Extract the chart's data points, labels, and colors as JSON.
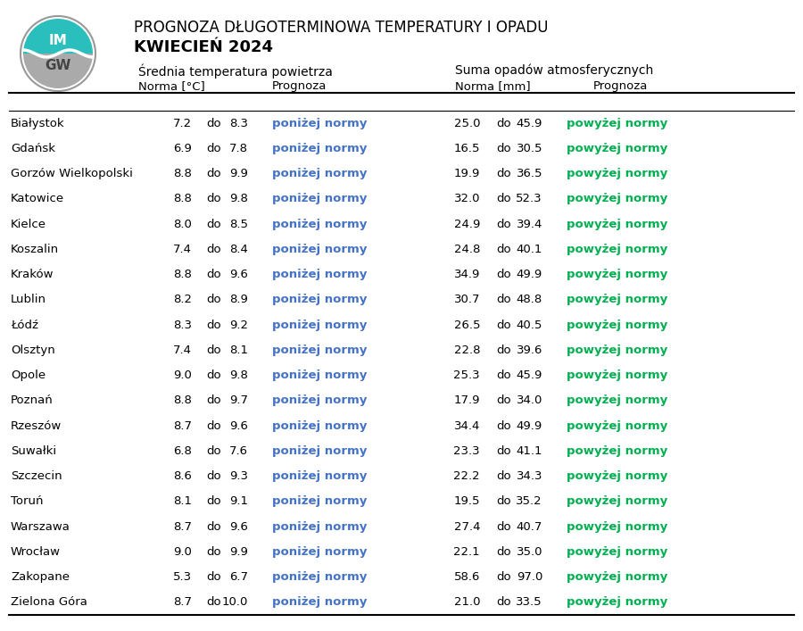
{
  "title_line1": "PROGNOZA DŁUGOTERMINOWA TEMPERATURY I OPADU",
  "title_line2": "KWIECIEŃ 2024",
  "header_temp": "Średnnia temperatura powietrza",
  "header_precip": "Suma opadów atmosferycznych",
  "col_norma_temp": "Norma [°C]",
  "col_prognoza": "Prognoza",
  "col_norma_precip": "Norma [mm]",
  "col_prognoza2": "Prognoza",
  "cities": [
    "Białystok",
    "Gdańsk",
    "Gorzów Wielkopolski",
    "Katowice",
    "Kielce",
    "Koszalin",
    "Kraków",
    "Lublin",
    "Łódź",
    "Olsztyn",
    "Opole",
    "Poznań",
    "Rzeszów",
    "Suwałki",
    "Szczecin",
    "Toruń",
    "Warszawa",
    "Wrocław",
    "Zakopane",
    "Zielona Góra"
  ],
  "temp_norm_low": [
    7.2,
    6.9,
    8.8,
    8.8,
    8.0,
    7.4,
    8.8,
    8.2,
    8.3,
    7.4,
    9.0,
    8.8,
    8.7,
    6.8,
    8.6,
    8.1,
    8.7,
    9.0,
    5.3,
    8.7
  ],
  "temp_norm_high": [
    8.3,
    7.8,
    9.9,
    9.8,
    8.5,
    8.4,
    9.6,
    8.9,
    9.2,
    8.1,
    9.8,
    9.7,
    9.6,
    7.6,
    9.3,
    9.1,
    9.6,
    9.9,
    6.7,
    10.0
  ],
  "temp_prognoza": "poniżej normy",
  "precip_norm_low": [
    25.0,
    16.5,
    19.9,
    32.0,
    24.9,
    24.8,
    34.9,
    30.7,
    26.5,
    22.8,
    25.3,
    17.9,
    34.4,
    23.3,
    22.2,
    19.5,
    27.4,
    22.1,
    58.6,
    21.0
  ],
  "precip_norm_high": [
    45.9,
    30.5,
    36.5,
    52.3,
    39.4,
    40.1,
    49.9,
    48.8,
    40.5,
    39.6,
    45.9,
    34.0,
    49.9,
    41.1,
    34.3,
    35.2,
    40.7,
    35.0,
    97.0,
    33.5
  ],
  "precip_prognoza": "powyżej normy",
  "temp_prognoza_color": "#4472C4",
  "precip_prognoza_color": "#00B050",
  "background_color": "#FFFFFF",
  "text_color": "#000000",
  "logo_top_color": "#2ABEBC",
  "logo_bottom_color": "#AAAAAA",
  "logo_border_color": "#999999"
}
